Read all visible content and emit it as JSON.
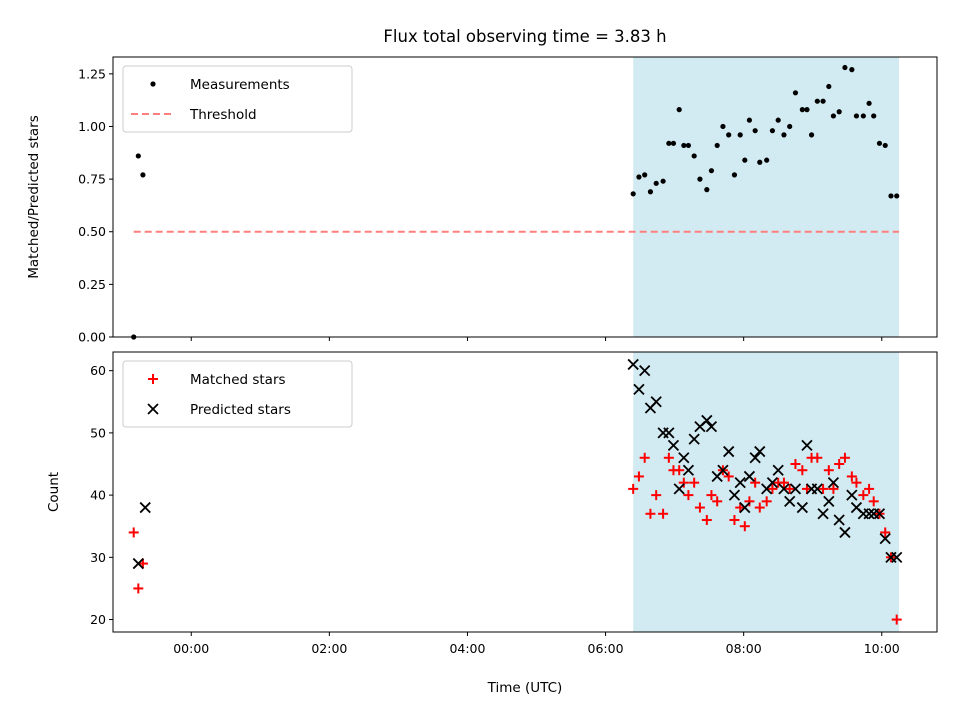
{
  "chart_data": [
    {
      "type": "scatter",
      "title": "Flux total observing time = 3.83 h",
      "xlabel": "",
      "ylabel": "Matched/Predicted stars",
      "xlim": [
        "22:52",
        "10:48"
      ],
      "ylim": [
        0,
        1.33
      ],
      "yticks": [
        0.0,
        0.25,
        0.5,
        0.75,
        1.0,
        1.25
      ],
      "ytick_labels": [
        "0.00",
        "0.25",
        "0.50",
        "0.75",
        "1.00",
        "1.25"
      ],
      "legend": {
        "position": "top-left",
        "entries": [
          "Measurements",
          "Threshold"
        ]
      },
      "shaded_region": {
        "x_start": "06:24",
        "x_end": "10:15",
        "color": "#add8e6"
      },
      "threshold": {
        "name": "Threshold",
        "y": 0.5,
        "x_start": "23:10",
        "x_end": "10:15",
        "color": "#ff7f7f"
      },
      "series": [
        {
          "name": "Measurements",
          "marker": "dot",
          "color": "#000000",
          "x": [
            "23:10",
            "23:14",
            "23:18",
            "06:24",
            "06:29",
            "06:34",
            "06:39",
            "06:44",
            "06:50",
            "06:55",
            "06:59",
            "07:04",
            "07:08",
            "07:12",
            "07:17",
            "07:22",
            "07:28",
            "07:32",
            "07:37",
            "07:42",
            "07:47",
            "07:52",
            "07:57",
            "08:01",
            "08:05",
            "08:10",
            "08:14",
            "08:20",
            "08:25",
            "08:30",
            "08:35",
            "08:40",
            "08:45",
            "08:51",
            "08:55",
            "08:59",
            "09:04",
            "09:09",
            "09:14",
            "09:18",
            "09:23",
            "09:28",
            "09:34",
            "09:38",
            "09:44",
            "09:49",
            "09:53",
            "09:58",
            "10:03",
            "10:08",
            "10:13"
          ],
          "y": [
            0.0,
            0.86,
            0.77,
            0.68,
            0.76,
            0.77,
            0.69,
            0.73,
            0.74,
            0.92,
            0.92,
            1.08,
            0.91,
            0.91,
            0.86,
            0.75,
            0.7,
            0.79,
            0.91,
            1.0,
            0.96,
            0.77,
            0.96,
            0.84,
            1.03,
            0.98,
            0.83,
            0.84,
            0.98,
            1.03,
            0.96,
            1.0,
            1.16,
            1.08,
            1.08,
            0.96,
            1.12,
            1.12,
            1.19,
            1.05,
            1.07,
            1.28,
            1.27,
            1.05,
            1.05,
            1.11,
            1.05,
            0.92,
            0.91,
            0.67,
            0.67
          ]
        }
      ]
    },
    {
      "type": "scatter",
      "title": "",
      "xlabel": "Time (UTC)",
      "ylabel": "Count",
      "xlim": [
        "22:52",
        "10:48"
      ],
      "ylim": [
        18,
        63
      ],
      "xticks": [
        "00:00",
        "02:00",
        "04:00",
        "06:00",
        "08:00",
        "10:00"
      ],
      "yticks": [
        20,
        30,
        40,
        50,
        60
      ],
      "ytick_labels": [
        "20",
        "30",
        "40",
        "50",
        "60"
      ],
      "legend": {
        "position": "top-left",
        "entries": [
          "Matched stars",
          "Predicted stars"
        ]
      },
      "shaded_region": {
        "x_start": "06:24",
        "x_end": "10:15",
        "color": "#add8e6"
      },
      "series": [
        {
          "name": "Matched stars",
          "marker": "plus",
          "color": "#ff0000",
          "x": [
            "23:10",
            "23:14",
            "23:18",
            "06:24",
            "06:29",
            "06:34",
            "06:39",
            "06:44",
            "06:50",
            "06:55",
            "06:59",
            "07:04",
            "07:08",
            "07:12",
            "07:17",
            "07:22",
            "07:28",
            "07:32",
            "07:37",
            "07:42",
            "07:47",
            "07:52",
            "07:57",
            "08:01",
            "08:05",
            "08:10",
            "08:14",
            "08:20",
            "08:25",
            "08:30",
            "08:35",
            "08:40",
            "08:45",
            "08:51",
            "08:55",
            "08:59",
            "09:04",
            "09:09",
            "09:14",
            "09:18",
            "09:23",
            "09:28",
            "09:34",
            "09:38",
            "09:44",
            "09:49",
            "09:53",
            "09:58",
            "10:03",
            "10:08",
            "10:13"
          ],
          "y": [
            34,
            25,
            29,
            41,
            43,
            46,
            37,
            40,
            37,
            46,
            44,
            44,
            42,
            40,
            42,
            38,
            36,
            40,
            39,
            44,
            43,
            36,
            38,
            35,
            39,
            42,
            38,
            39,
            41,
            42,
            42,
            41,
            45,
            44,
            41,
            46,
            46,
            41,
            44,
            41,
            45,
            46,
            43,
            42,
            40,
            41,
            39,
            37,
            34,
            30,
            20
          ]
        },
        {
          "name": "Predicted stars",
          "marker": "x",
          "color": "#000000",
          "x": [
            "23:14",
            "23:20",
            "06:24",
            "06:29",
            "06:34",
            "06:39",
            "06:44",
            "06:50",
            "06:55",
            "06:59",
            "07:04",
            "07:08",
            "07:12",
            "07:17",
            "07:22",
            "07:28",
            "07:32",
            "07:37",
            "07:42",
            "07:47",
            "07:52",
            "07:57",
            "08:01",
            "08:05",
            "08:10",
            "08:14",
            "08:20",
            "08:25",
            "08:30",
            "08:35",
            "08:40",
            "08:45",
            "08:51",
            "08:55",
            "08:59",
            "09:04",
            "09:09",
            "09:14",
            "09:18",
            "09:23",
            "09:28",
            "09:34",
            "09:38",
            "09:44",
            "09:49",
            "09:53",
            "09:58",
            "10:03",
            "10:08",
            "10:13"
          ],
          "y": [
            29,
            38,
            61,
            57,
            60,
            54,
            55,
            50,
            50,
            48,
            41,
            46,
            44,
            49,
            51,
            52,
            51,
            43,
            44,
            47,
            40,
            42,
            38,
            43,
            46,
            47,
            41,
            42,
            44,
            41,
            39,
            41,
            38,
            48,
            41,
            41,
            37,
            39,
            42,
            36,
            34,
            40,
            38,
            37,
            37,
            37,
            37,
            33,
            30,
            30
          ]
        }
      ]
    }
  ]
}
